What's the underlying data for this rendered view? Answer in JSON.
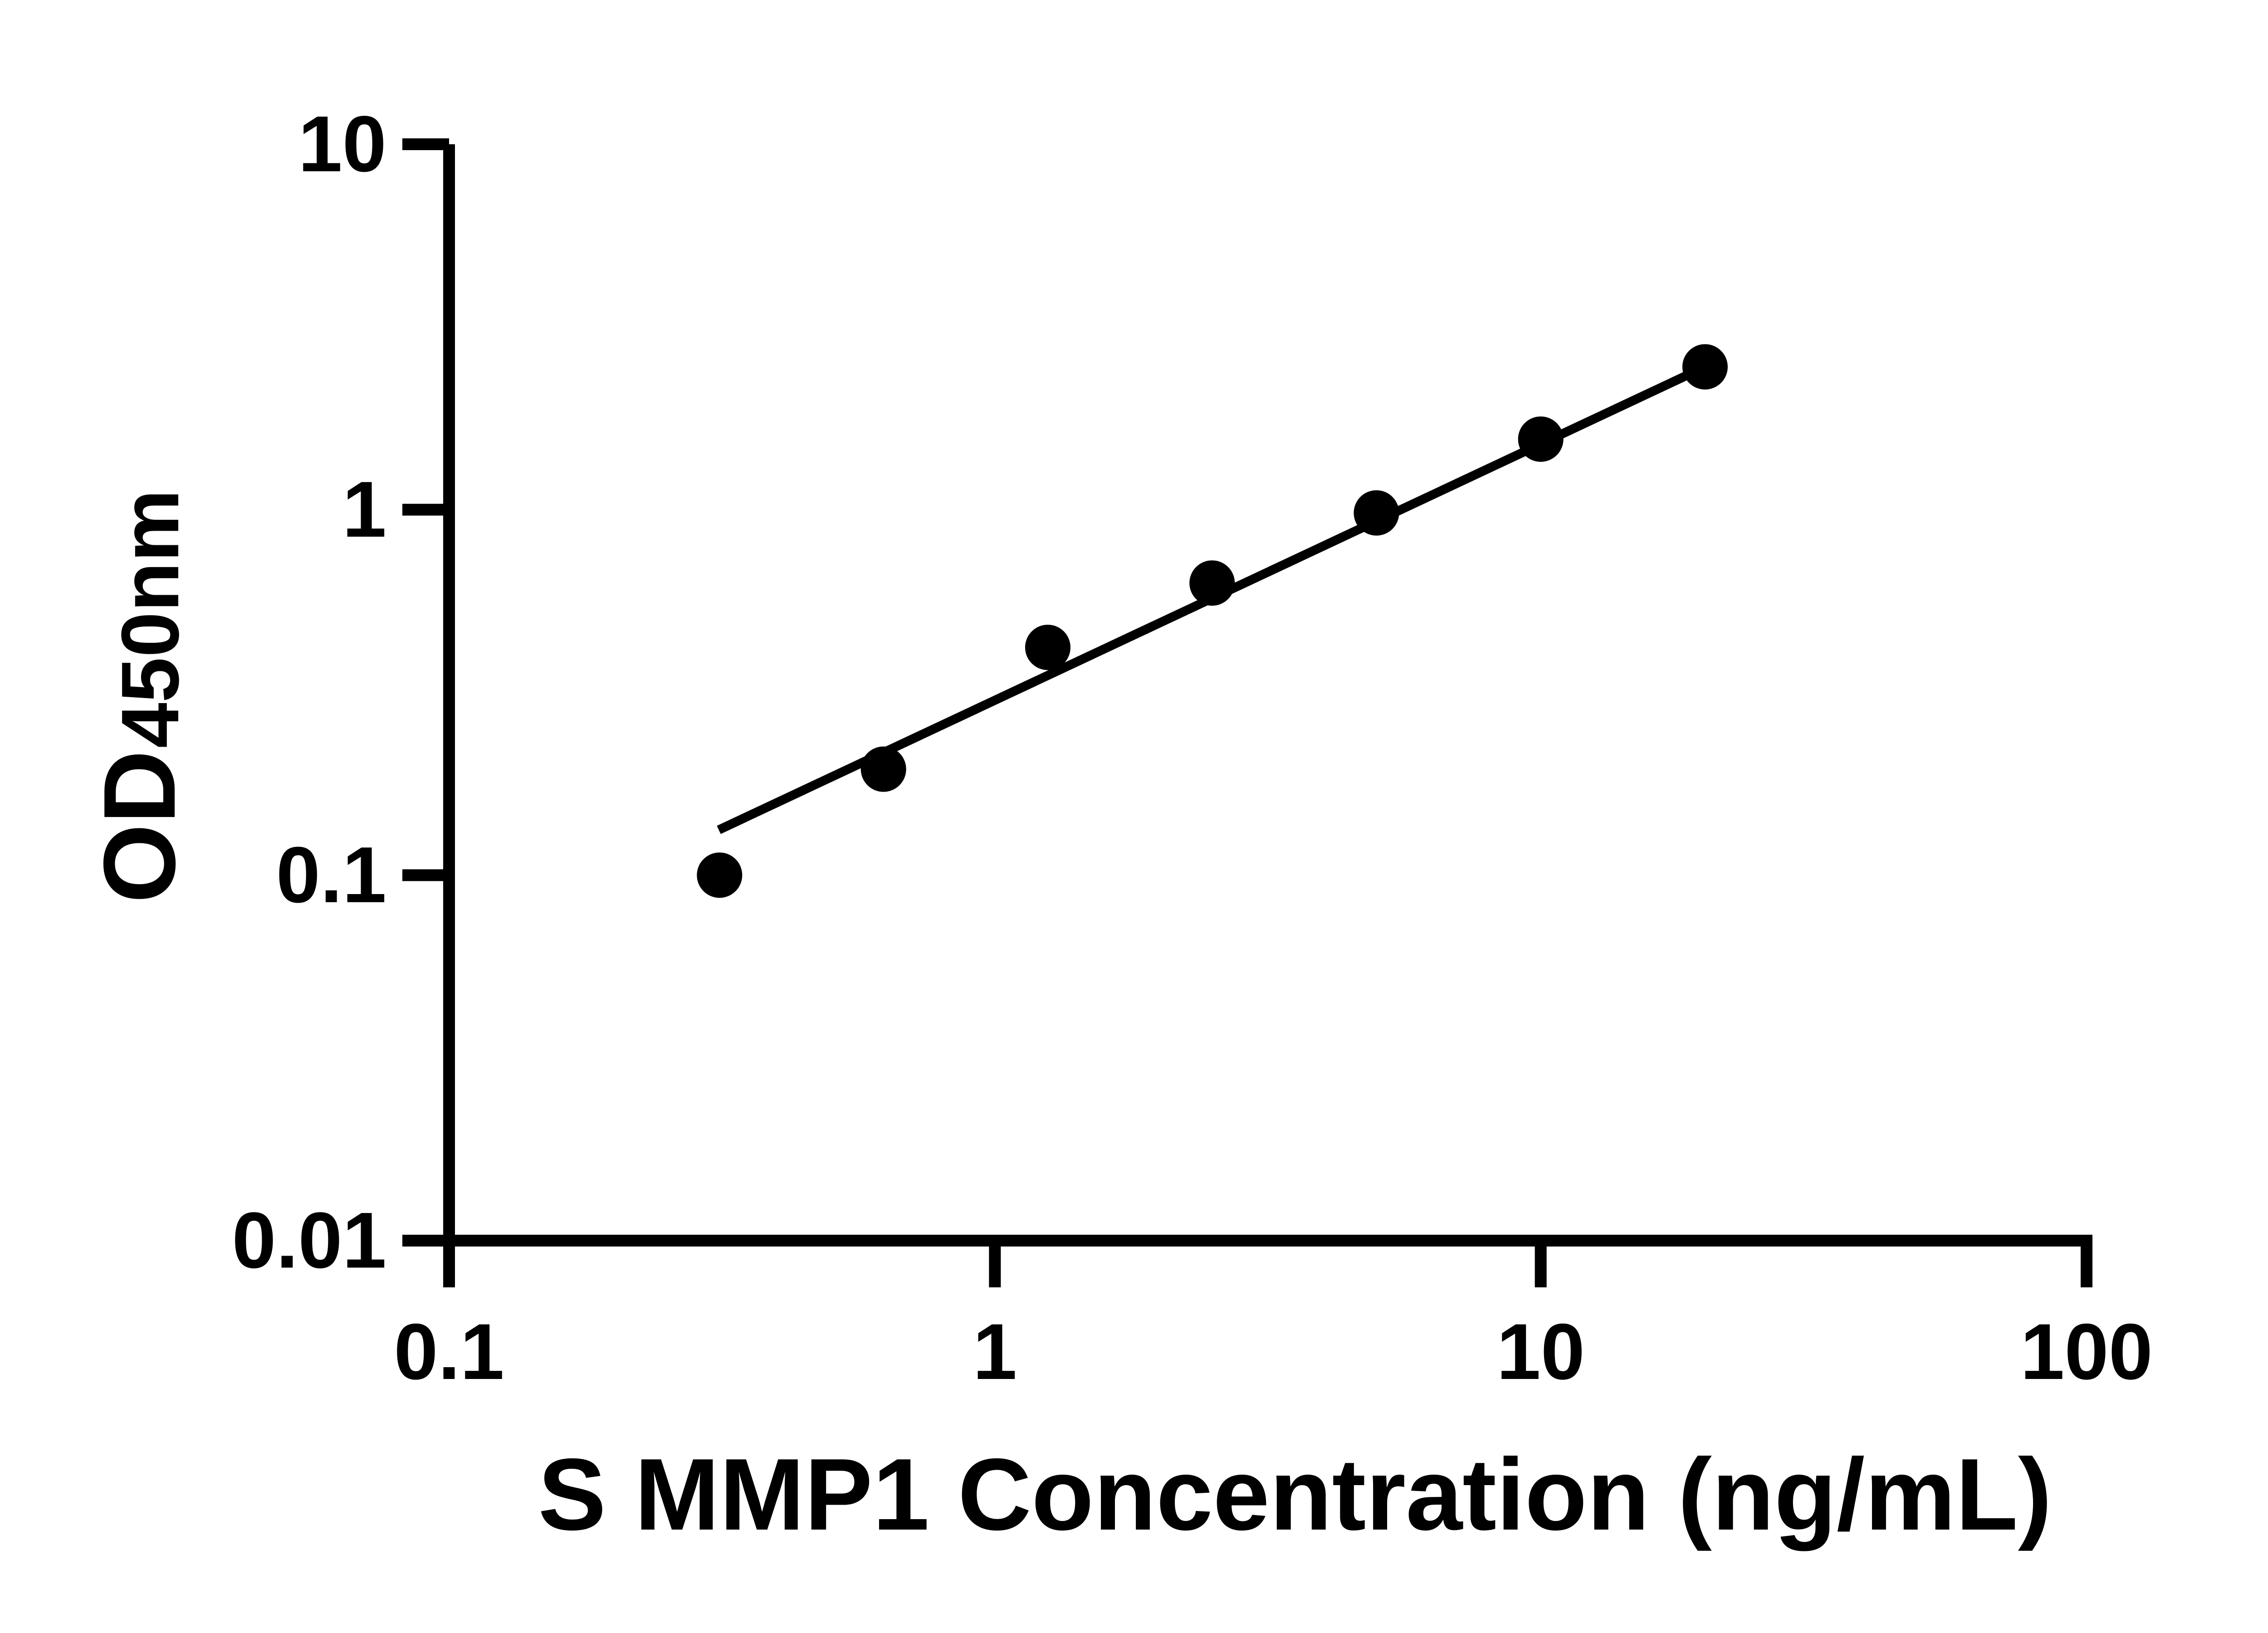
{
  "figure": {
    "background": "#ffffff",
    "foreground": "#000000"
  },
  "chart_data": {
    "type": "scatter",
    "title": "",
    "xlabel": "S MMP1 Concentration (ng/mL)",
    "ylabel_main": "OD",
    "ylabel_sub": "450nm",
    "xscale": "log",
    "yscale": "log",
    "xlim": [
      0.1,
      100
    ],
    "ylim": [
      0.01,
      10
    ],
    "grid": false,
    "legend": "none",
    "marker_color": "#000000",
    "line_color": "#000000",
    "xticks": {
      "values": [
        0.1,
        1,
        10,
        100
      ],
      "labels": [
        "0.1",
        "1",
        "10",
        "100"
      ]
    },
    "yticks": {
      "values": [
        0.01,
        0.1,
        1,
        10
      ],
      "labels": [
        "0.01",
        "0.1",
        "1",
        "10"
      ]
    },
    "points": {
      "x": [
        0.313,
        0.625,
        1.25,
        2.5,
        5,
        10,
        20
      ],
      "y": [
        0.1,
        0.195,
        0.42,
        0.63,
        0.98,
        1.56,
        2.46
      ]
    },
    "trendline": {
      "x1": 0.312,
      "y1": 0.133,
      "x2": 20,
      "y2": 2.46
    }
  }
}
